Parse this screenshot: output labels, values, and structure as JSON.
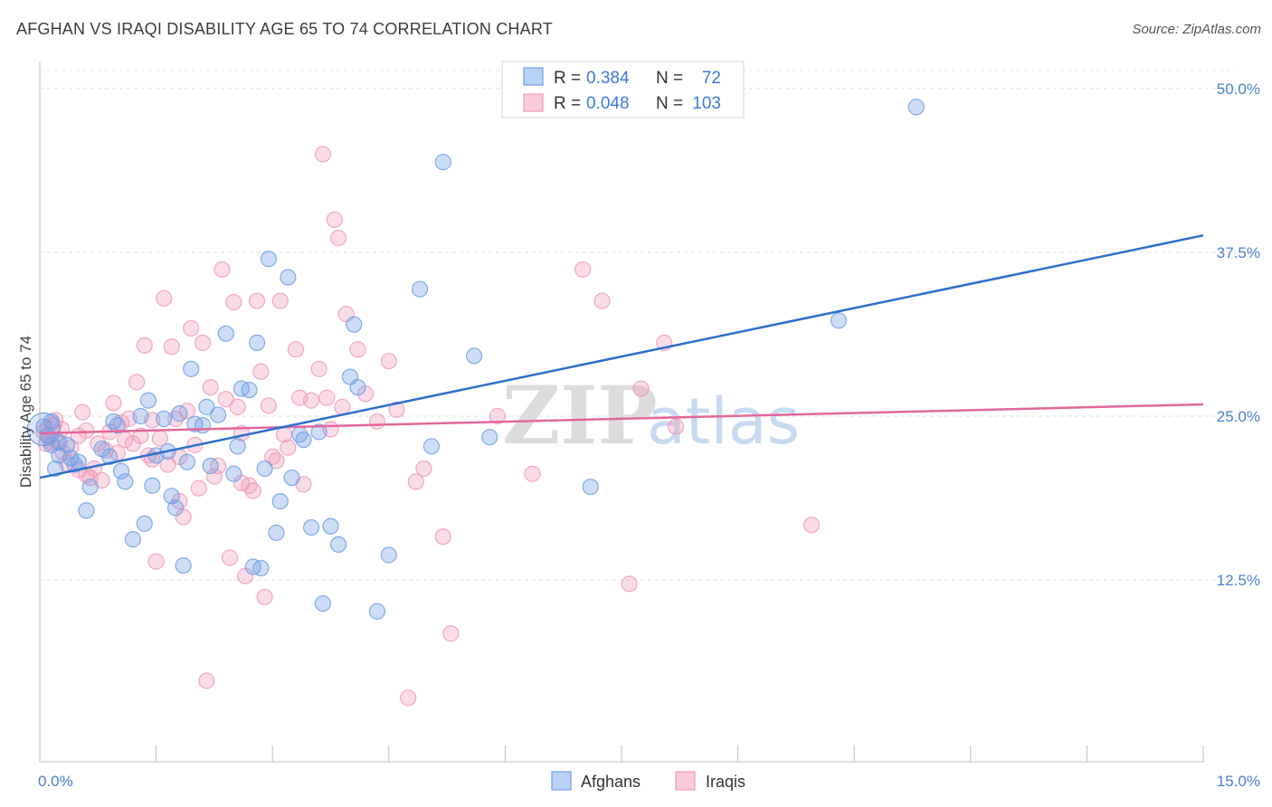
{
  "title": "AFGHAN VS IRAQI DISABILITY AGE 65 TO 74 CORRELATION CHART",
  "source": "Source: ZipAtlas.com",
  "watermark": {
    "zip": "ZIP",
    "atlas": "atlas"
  },
  "legend_top": [
    {
      "r_label": "R =",
      "r_value": "0.384",
      "n_label": "N =",
      "n_value": "72"
    },
    {
      "r_label": "R =",
      "r_value": "0.048",
      "n_label": "N =",
      "n_value": "103"
    }
  ],
  "chart_data": {
    "type": "scatter",
    "xlabel": "",
    "ylabel": "Disability Age 65 to 74",
    "xlim": [
      0,
      15
    ],
    "ylim": [
      0,
      50
    ],
    "x_tick_labels": [
      "0.0%",
      "15.0%"
    ],
    "y_tick_values": [
      12.5,
      25.0,
      37.5,
      50.0
    ],
    "y_tick_labels": [
      "12.5%",
      "25.0%",
      "37.5%",
      "50.0%"
    ],
    "grid": "horizontal dashed",
    "legend": "top-center and bottom",
    "colors": {
      "afghans": "#6f9fe6",
      "afghans_line": "#2c6fce",
      "iraqis": "#f19ab7",
      "iraqis_line": "#e2679a"
    },
    "series": [
      {
        "name": "Afghans",
        "trend": {
          "x": [
            0,
            15
          ],
          "y": [
            20.3,
            38.8
          ]
        },
        "points": [
          [
            0.05,
            24.2
          ],
          [
            0.1,
            23.5
          ],
          [
            0.15,
            24.6
          ],
          [
            0.2,
            21.0
          ],
          [
            0.25,
            22.0
          ],
          [
            0.35,
            22.8
          ],
          [
            0.4,
            21.8
          ],
          [
            0.5,
            21.5
          ],
          [
            0.6,
            17.8
          ],
          [
            0.65,
            19.6
          ],
          [
            0.8,
            22.5
          ],
          [
            0.9,
            21.9
          ],
          [
            0.95,
            24.6
          ],
          [
            1.0,
            24.3
          ],
          [
            1.05,
            20.8
          ],
          [
            1.1,
            20.0
          ],
          [
            1.2,
            15.6
          ],
          [
            1.3,
            25.0
          ],
          [
            1.35,
            16.8
          ],
          [
            1.4,
            26.2
          ],
          [
            1.45,
            19.7
          ],
          [
            1.5,
            22.0
          ],
          [
            1.6,
            24.8
          ],
          [
            1.65,
            22.3
          ],
          [
            1.7,
            18.9
          ],
          [
            1.75,
            18.0
          ],
          [
            1.8,
            25.2
          ],
          [
            1.85,
            13.6
          ],
          [
            1.9,
            21.5
          ],
          [
            1.95,
            28.6
          ],
          [
            2.0,
            24.4
          ],
          [
            2.1,
            24.3
          ],
          [
            2.15,
            25.7
          ],
          [
            2.2,
            21.2
          ],
          [
            2.3,
            25.1
          ],
          [
            2.4,
            31.3
          ],
          [
            2.5,
            20.6
          ],
          [
            2.55,
            22.7
          ],
          [
            2.6,
            27.1
          ],
          [
            2.7,
            27.0
          ],
          [
            2.75,
            13.5
          ],
          [
            2.8,
            30.6
          ],
          [
            2.85,
            13.4
          ],
          [
            2.9,
            21.0
          ],
          [
            2.95,
            37.0
          ],
          [
            3.05,
            16.1
          ],
          [
            3.1,
            18.5
          ],
          [
            3.2,
            35.6
          ],
          [
            3.25,
            20.3
          ],
          [
            3.35,
            23.6
          ],
          [
            3.4,
            23.2
          ],
          [
            3.5,
            16.5
          ],
          [
            3.6,
            23.8
          ],
          [
            3.65,
            10.7
          ],
          [
            3.75,
            16.6
          ],
          [
            3.85,
            15.2
          ],
          [
            4.0,
            28.0
          ],
          [
            4.05,
            32.0
          ],
          [
            4.1,
            27.2
          ],
          [
            4.35,
            10.1
          ],
          [
            4.5,
            14.4
          ],
          [
            4.9,
            34.7
          ],
          [
            5.05,
            22.7
          ],
          [
            5.2,
            44.4
          ],
          [
            5.6,
            29.6
          ],
          [
            5.8,
            23.4
          ],
          [
            7.1,
            19.6
          ],
          [
            10.3,
            32.3
          ],
          [
            11.3,
            48.6
          ],
          [
            0.15,
            22.8
          ],
          [
            0.25,
            23.0
          ],
          [
            0.45,
            21.3
          ]
        ]
      },
      {
        "name": "Iraqis",
        "trend": {
          "x": [
            0,
            15
          ],
          "y": [
            23.7,
            25.9
          ]
        },
        "points": [
          [
            0.05,
            23.8
          ],
          [
            0.1,
            24.1
          ],
          [
            0.15,
            23.0
          ],
          [
            0.2,
            24.7
          ],
          [
            0.3,
            22.2
          ],
          [
            0.4,
            22.6
          ],
          [
            0.5,
            23.5
          ],
          [
            0.55,
            25.3
          ],
          [
            0.6,
            20.5
          ],
          [
            0.65,
            20.3
          ],
          [
            0.7,
            21.0
          ],
          [
            0.75,
            22.9
          ],
          [
            0.8,
            20.1
          ],
          [
            0.9,
            23.8
          ],
          [
            0.95,
            26.0
          ],
          [
            1.0,
            22.2
          ],
          [
            1.05,
            24.5
          ],
          [
            1.1,
            23.2
          ],
          [
            1.2,
            22.9
          ],
          [
            1.25,
            27.6
          ],
          [
            1.3,
            23.5
          ],
          [
            1.35,
            30.4
          ],
          [
            1.4,
            22.0
          ],
          [
            1.45,
            24.7
          ],
          [
            1.5,
            13.9
          ],
          [
            1.55,
            23.3
          ],
          [
            1.6,
            34.0
          ],
          [
            1.65,
            21.3
          ],
          [
            1.7,
            30.3
          ],
          [
            1.75,
            24.8
          ],
          [
            1.8,
            18.5
          ],
          [
            1.85,
            17.3
          ],
          [
            1.9,
            25.4
          ],
          [
            1.95,
            31.7
          ],
          [
            2.0,
            22.8
          ],
          [
            2.05,
            19.5
          ],
          [
            2.1,
            30.6
          ],
          [
            2.15,
            4.8
          ],
          [
            2.2,
            27.2
          ],
          [
            2.3,
            21.2
          ],
          [
            2.35,
            36.2
          ],
          [
            2.4,
            26.3
          ],
          [
            2.45,
            14.2
          ],
          [
            2.5,
            33.7
          ],
          [
            2.55,
            25.7
          ],
          [
            2.6,
            23.7
          ],
          [
            2.65,
            12.8
          ],
          [
            2.7,
            19.7
          ],
          [
            2.75,
            19.3
          ],
          [
            2.8,
            33.8
          ],
          [
            2.85,
            28.4
          ],
          [
            2.9,
            11.2
          ],
          [
            2.95,
            25.8
          ],
          [
            3.0,
            21.9
          ],
          [
            3.05,
            21.6
          ],
          [
            3.1,
            33.8
          ],
          [
            3.15,
            23.6
          ],
          [
            3.3,
            30.1
          ],
          [
            3.35,
            26.4
          ],
          [
            3.4,
            19.8
          ],
          [
            3.5,
            26.2
          ],
          [
            3.6,
            28.6
          ],
          [
            3.65,
            45.0
          ],
          [
            3.7,
            26.4
          ],
          [
            3.75,
            24.0
          ],
          [
            3.8,
            40.0
          ],
          [
            3.85,
            38.6
          ],
          [
            3.9,
            25.7
          ],
          [
            3.95,
            32.8
          ],
          [
            4.1,
            30.1
          ],
          [
            4.2,
            26.7
          ],
          [
            4.35,
            24.6
          ],
          [
            4.5,
            29.2
          ],
          [
            4.6,
            25.5
          ],
          [
            4.75,
            3.5
          ],
          [
            4.85,
            20.0
          ],
          [
            4.95,
            21.0
          ],
          [
            5.2,
            15.8
          ],
          [
            5.3,
            8.4
          ],
          [
            5.9,
            25.0
          ],
          [
            6.35,
            20.6
          ],
          [
            7.0,
            36.2
          ],
          [
            7.25,
            33.8
          ],
          [
            7.6,
            12.2
          ],
          [
            7.75,
            27.1
          ],
          [
            8.05,
            30.6
          ],
          [
            8.2,
            24.2
          ],
          [
            9.95,
            16.7
          ],
          [
            0.12,
            23.4
          ],
          [
            0.18,
            24.3
          ],
          [
            0.22,
            23.1
          ],
          [
            0.35,
            21.4
          ],
          [
            0.6,
            23.9
          ],
          [
            0.85,
            22.4
          ],
          [
            1.15,
            24.8
          ],
          [
            1.45,
            21.7
          ],
          [
            1.8,
            21.9
          ],
          [
            2.25,
            20.4
          ],
          [
            2.6,
            19.9
          ],
          [
            3.2,
            22.6
          ],
          [
            0.08,
            22.9
          ],
          [
            0.28,
            24.0
          ],
          [
            0.5,
            20.9
          ]
        ]
      }
    ]
  },
  "legend_bottom": [
    "Afghans",
    "Iraqis"
  ]
}
